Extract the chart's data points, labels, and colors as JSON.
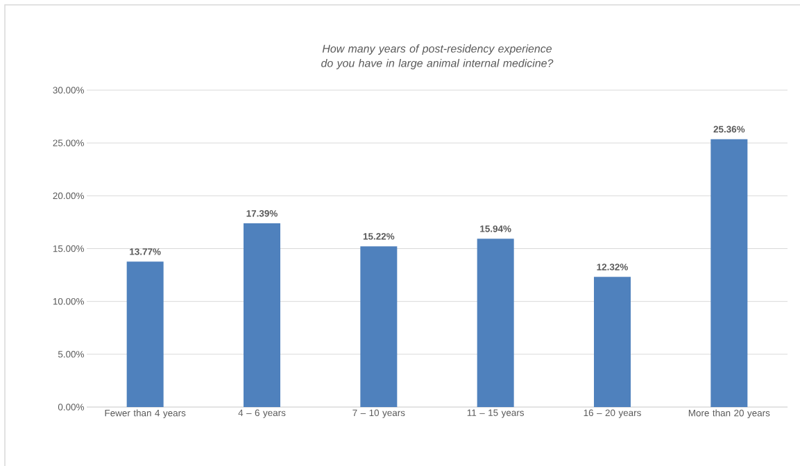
{
  "chart_data": {
    "type": "bar",
    "title": "How many years of post-residency experience do you have in large animal internal medicine?",
    "categories": [
      "Fewer than 4 years",
      "4 – 6 years",
      "7 – 10 years",
      "11 – 15 years",
      "16 – 20 years",
      "More than 20 years"
    ],
    "values": [
      13.77,
      17.39,
      15.22,
      15.94,
      12.32,
      25.36
    ],
    "value_labels": [
      "13.77%",
      "17.39%",
      "15.22%",
      "15.94%",
      "12.32%",
      "25.36%"
    ],
    "color": "#4f81bd",
    "ylim": [
      0,
      30
    ],
    "yticks": [
      {
        "value": 0,
        "label": "0.00%"
      },
      {
        "value": 5,
        "label": "5.00%"
      },
      {
        "value": 10,
        "label": "10.00%"
      },
      {
        "value": 15,
        "label": "15.00%"
      },
      {
        "value": 20,
        "label": "20.00%"
      },
      {
        "value": 25,
        "label": "25.00%"
      },
      {
        "value": 30,
        "label": "30.00%"
      }
    ],
    "grid": "y"
  }
}
